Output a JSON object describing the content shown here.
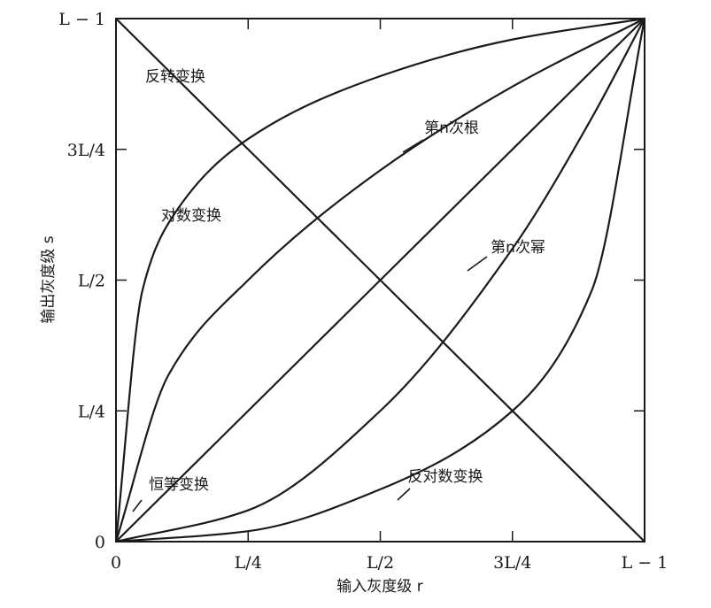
{
  "chart_data": {
    "type": "line",
    "title": "",
    "xlabel": "输入灰度级 r",
    "ylabel": "输出灰度级 s",
    "xlim": [
      0,
      1
    ],
    "ylim": [
      0,
      1
    ],
    "x_ticks": [
      {
        "value": 0,
        "label": "0"
      },
      {
        "value": 0.25,
        "label": "L/4"
      },
      {
        "value": 0.5,
        "label": "L/2"
      },
      {
        "value": 0.75,
        "label": "3L/4"
      },
      {
        "value": 1,
        "label": "L − 1"
      }
    ],
    "y_ticks": [
      {
        "value": 0,
        "label": "0"
      },
      {
        "value": 0.25,
        "label": "L/4"
      },
      {
        "value": 0.5,
        "label": "L/2"
      },
      {
        "value": 0.75,
        "label": "3L/4"
      },
      {
        "value": 1,
        "label": "L − 1"
      }
    ],
    "grid": false,
    "series": [
      {
        "name": "反转变换",
        "x": [
          0,
          1
        ],
        "y": [
          1,
          0
        ]
      },
      {
        "name": "对数变换",
        "x": [
          0,
          0.05,
          0.1,
          0.25,
          0.5,
          0.75,
          1
        ],
        "y": [
          0,
          0.48,
          0.61,
          0.77,
          0.89,
          0.96,
          1
        ]
      },
      {
        "name": "第n次根",
        "x": [
          0,
          0.1,
          0.25,
          0.5,
          0.75,
          1
        ],
        "y": [
          0,
          0.32,
          0.5,
          0.71,
          0.87,
          1
        ]
      },
      {
        "name": "恒等变换",
        "x": [
          0,
          1
        ],
        "y": [
          0,
          1
        ]
      },
      {
        "name": "第n次幂",
        "x": [
          0,
          0.25,
          0.5,
          0.75,
          0.9,
          1
        ],
        "y": [
          0,
          0.06,
          0.25,
          0.56,
          0.81,
          1
        ]
      },
      {
        "name": "反对数变换",
        "x": [
          0,
          0.25,
          0.5,
          0.75,
          0.9,
          1
        ],
        "y": [
          0,
          0.02,
          0.1,
          0.25,
          0.48,
          1
        ]
      }
    ]
  }
}
